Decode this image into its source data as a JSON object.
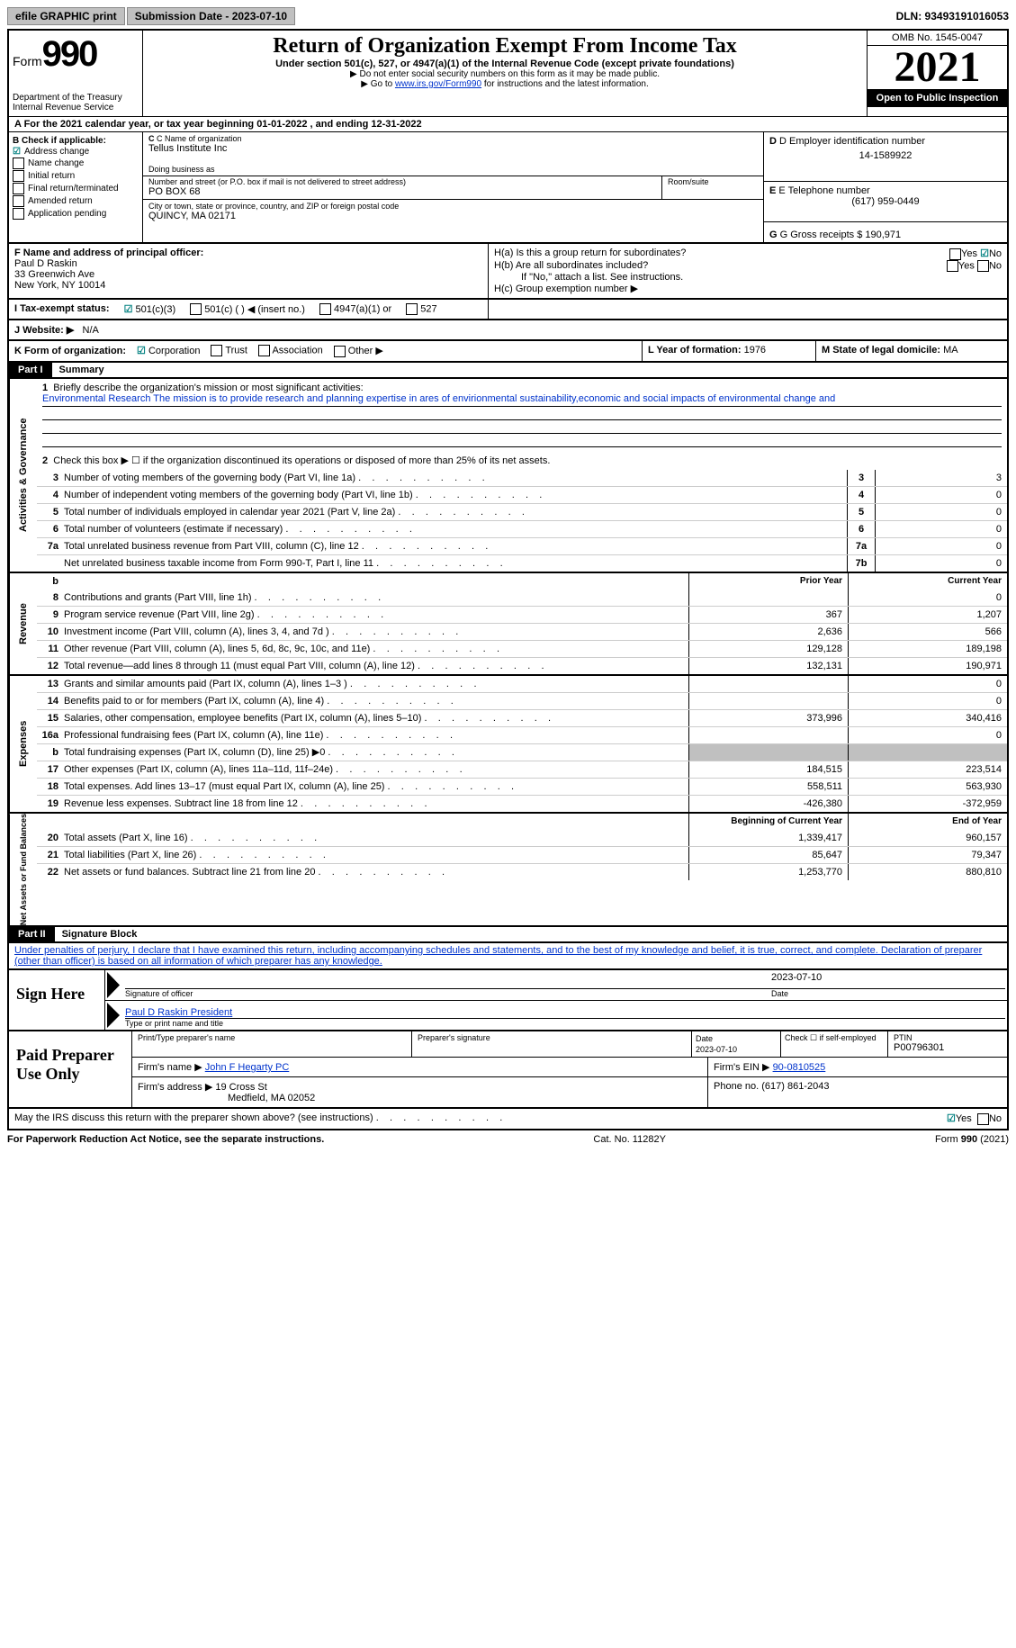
{
  "topbar": {
    "efile": "efile GRAPHIC print",
    "submission": "Submission Date - 2023-07-10",
    "dln": "DLN: 93493191016053"
  },
  "header": {
    "form_label": "Form",
    "form_number": "990",
    "dept": "Department of the Treasury",
    "irs": "Internal Revenue Service",
    "title": "Return of Organization Exempt From Income Tax",
    "subtitle": "Under section 501(c), 527, or 4947(a)(1) of the Internal Revenue Code (except private foundations)",
    "note1": "▶ Do not enter social security numbers on this form as it may be made public.",
    "note2_pre": "▶ Go to ",
    "note2_link": "www.irs.gov/Form990",
    "note2_post": " for instructions and the latest information.",
    "omb": "OMB No. 1545-0047",
    "year": "2021",
    "inspection": "Open to Public Inspection"
  },
  "row_a": {
    "text": "A For the 2021 calendar year, or tax year beginning 01-01-2022    , and ending 12-31-2022"
  },
  "section_b": {
    "label": "B Check if applicable:",
    "items": [
      "Address change",
      "Name change",
      "Initial return",
      "Final return/terminated",
      "Amended return",
      "Application pending"
    ],
    "checked_index": 0
  },
  "section_c": {
    "name_label": "C Name of organization",
    "name": "Tellus Institute Inc",
    "dba_label": "Doing business as",
    "dba": "",
    "street_label": "Number and street (or P.O. box if mail is not delivered to street address)",
    "room_label": "Room/suite",
    "street": "PO BOX 68",
    "city_label": "City or town, state or province, country, and ZIP or foreign postal code",
    "city": "QUINCY, MA  02171"
  },
  "section_d": {
    "label": "D Employer identification number",
    "value": "14-1589922"
  },
  "section_e": {
    "label": "E Telephone number",
    "value": "(617) 959-0449"
  },
  "section_g": {
    "label": "G Gross receipts $",
    "value": "190,971"
  },
  "section_f": {
    "label": "F  Name and address of principal officer:",
    "name": "Paul D Raskin",
    "street": "33 Greenwich Ave",
    "city": "New York, NY  10014"
  },
  "section_h": {
    "ha": "H(a)  Is this a group return for subordinates?",
    "ha_yes": "Yes",
    "ha_no": "No",
    "hb": "H(b)  Are all subordinates included?",
    "hb_note": "If \"No,\" attach a list. See instructions.",
    "hc": "H(c)  Group exemption number ▶"
  },
  "section_i": {
    "label": "I  Tax-exempt status:",
    "opt1": "501(c)(3)",
    "opt2": "501(c) (   ) ◀ (insert no.)",
    "opt3": "4947(a)(1) or",
    "opt4": "527"
  },
  "section_j": {
    "label": "J  Website: ▶",
    "value": "N/A"
  },
  "section_k": {
    "label": "K Form of organization:",
    "opts": [
      "Corporation",
      "Trust",
      "Association",
      "Other ▶"
    ],
    "l_label": "L Year of formation:",
    "l_value": "1976",
    "m_label": "M State of legal domicile:",
    "m_value": "MA"
  },
  "part1": {
    "header": "Part I",
    "title": "Summary",
    "q1_label": "1",
    "q1_text": "Briefly describe the organization's mission or most significant activities:",
    "q1_mission": "Environmental Research The mission is to provide research and planning expertise in ares of envirionmental sustainability,economic and social impacts of environmental change and",
    "q2": "Check this box ▶ ☐  if the organization discontinued its operations or disposed of more than 25% of its net assets.",
    "governance_label": "Activities & Governance",
    "revenue_label": "Revenue",
    "expenses_label": "Expenses",
    "netassets_label": "Net Assets or Fund Balances",
    "lines_gov": [
      {
        "n": "3",
        "d": "Number of voting members of the governing body (Part VI, line 1a)",
        "box": "3",
        "v": "3"
      },
      {
        "n": "4",
        "d": "Number of independent voting members of the governing body (Part VI, line 1b)",
        "box": "4",
        "v": "0"
      },
      {
        "n": "5",
        "d": "Total number of individuals employed in calendar year 2021 (Part V, line 2a)",
        "box": "5",
        "v": "0"
      },
      {
        "n": "6",
        "d": "Total number of volunteers (estimate if necessary)",
        "box": "6",
        "v": "0"
      },
      {
        "n": "7a",
        "d": "Total unrelated business revenue from Part VIII, column (C), line 12",
        "box": "7a",
        "v": "0"
      },
      {
        "n": "",
        "d": "Net unrelated business taxable income from Form 990-T, Part I, line 11",
        "box": "7b",
        "v": "0"
      }
    ],
    "col_prior": "Prior Year",
    "col_current": "Current Year",
    "lines_rev": [
      {
        "n": "8",
        "d": "Contributions and grants (Part VIII, line 1h)",
        "p": "",
        "c": "0"
      },
      {
        "n": "9",
        "d": "Program service revenue (Part VIII, line 2g)",
        "p": "367",
        "c": "1,207"
      },
      {
        "n": "10",
        "d": "Investment income (Part VIII, column (A), lines 3, 4, and 7d )",
        "p": "2,636",
        "c": "566"
      },
      {
        "n": "11",
        "d": "Other revenue (Part VIII, column (A), lines 5, 6d, 8c, 9c, 10c, and 11e)",
        "p": "129,128",
        "c": "189,198"
      },
      {
        "n": "12",
        "d": "Total revenue—add lines 8 through 11 (must equal Part VIII, column (A), line 12)",
        "p": "132,131",
        "c": "190,971"
      }
    ],
    "lines_exp": [
      {
        "n": "13",
        "d": "Grants and similar amounts paid (Part IX, column (A), lines 1–3 )",
        "p": "",
        "c": "0"
      },
      {
        "n": "14",
        "d": "Benefits paid to or for members (Part IX, column (A), line 4)",
        "p": "",
        "c": "0"
      },
      {
        "n": "15",
        "d": "Salaries, other compensation, employee benefits (Part IX, column (A), lines 5–10)",
        "p": "373,996",
        "c": "340,416"
      },
      {
        "n": "16a",
        "d": "Professional fundraising fees (Part IX, column (A), line 11e)",
        "p": "",
        "c": "0"
      },
      {
        "n": "b",
        "d": "Total fundraising expenses (Part IX, column (D), line 25) ▶0",
        "p": "grey",
        "c": "grey"
      },
      {
        "n": "17",
        "d": "Other expenses (Part IX, column (A), lines 11a–11d, 11f–24e)",
        "p": "184,515",
        "c": "223,514"
      },
      {
        "n": "18",
        "d": "Total expenses. Add lines 13–17 (must equal Part IX, column (A), line 25)",
        "p": "558,511",
        "c": "563,930"
      },
      {
        "n": "19",
        "d": "Revenue less expenses. Subtract line 18 from line 12",
        "p": "-426,380",
        "c": "-372,959"
      }
    ],
    "col_begin": "Beginning of Current Year",
    "col_end": "End of Year",
    "lines_net": [
      {
        "n": "20",
        "d": "Total assets (Part X, line 16)",
        "p": "1,339,417",
        "c": "960,157"
      },
      {
        "n": "21",
        "d": "Total liabilities (Part X, line 26)",
        "p": "85,647",
        "c": "79,347"
      },
      {
        "n": "22",
        "d": "Net assets or fund balances. Subtract line 21 from line 20",
        "p": "1,253,770",
        "c": "880,810"
      }
    ]
  },
  "part2": {
    "header": "Part II",
    "title": "Signature Block",
    "declaration": "Under penalties of perjury, I declare that I have examined this return, including accompanying schedules and statements, and to the best of my knowledge and belief, it is true, correct, and complete. Declaration of preparer (other than officer) is based on all information of which preparer has any knowledge.",
    "sign_here": "Sign Here",
    "sig_date": "2023-07-10",
    "sig_officer_label": "Signature of officer",
    "sig_date_label": "Date",
    "sig_name": "Paul D Raskin  President",
    "sig_name_label": "Type or print name and title",
    "paid_prep": "Paid Preparer Use Only",
    "prep_name_label": "Print/Type preparer's name",
    "prep_sig_label": "Preparer's signature",
    "prep_date_label": "Date",
    "prep_date": "2023-07-10",
    "prep_check": "Check ☐ if self-employed",
    "ptin_label": "PTIN",
    "ptin": "P00796301",
    "firm_name_label": "Firm's name      ▶",
    "firm_name": "John F Hegarty PC",
    "firm_ein_label": "Firm's EIN ▶",
    "firm_ein": "90-0810525",
    "firm_addr_label": "Firm's address ▶",
    "firm_addr1": "19 Cross St",
    "firm_addr2": "Medfield, MA  02052",
    "firm_phone_label": "Phone no.",
    "firm_phone": "(617) 861-2043",
    "discuss": "May the IRS discuss this return with the preparer shown above? (see instructions)",
    "discuss_yes": "Yes",
    "discuss_no": "No"
  },
  "footer": {
    "left": "For Paperwork Reduction Act Notice, see the separate instructions.",
    "mid": "Cat. No. 11282Y",
    "right": "Form 990 (2021)"
  }
}
